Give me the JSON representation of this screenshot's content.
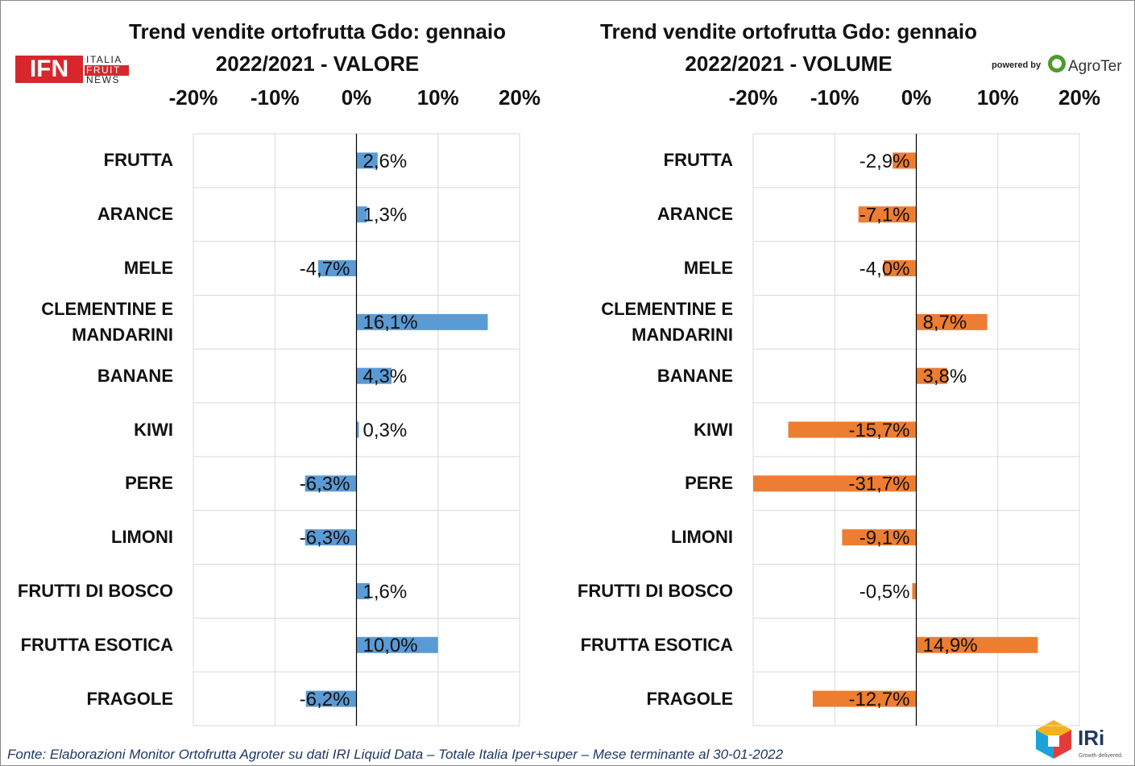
{
  "chart_data": [
    {
      "type": "bar",
      "orientation": "horizontal",
      "title": "Trend vendite ortofrutta Gdo: gennaio 2022/2021 - VALORE",
      "categories": [
        "FRUTTA",
        "ARANCE",
        "MELE",
        "CLEMENTINE E MANDARINI",
        "BANANE",
        "KIWI",
        "PERE",
        "LIMONI",
        "FRUTTI DI BOSCO",
        "FRUTTA ESOTICA",
        "FRAGOLE"
      ],
      "values": [
        2.6,
        1.3,
        -4.7,
        16.1,
        4.3,
        0.3,
        -6.3,
        -6.3,
        1.6,
        10.0,
        -6.2
      ],
      "value_labels": [
        "2,6%",
        "1,3%",
        "-4,7%",
        "16,1%",
        "4,3%",
        "0,3%",
        "-6,3%",
        "-6,3%",
        "1,6%",
        "10,0%",
        "-6,2%"
      ],
      "color": "#5b9bd5",
      "xlim": [
        -20,
        20
      ],
      "xticks": [
        {
          "value": -20,
          "label": "-20%"
        },
        {
          "value": -10,
          "label": "-10%"
        },
        {
          "value": 0,
          "label": "0%"
        },
        {
          "value": 10,
          "label": "10%"
        },
        {
          "value": 20,
          "label": "20%"
        }
      ],
      "grid": true
    },
    {
      "type": "bar",
      "orientation": "horizontal",
      "title": "Trend vendite ortofrutta Gdo: gennaio 2022/2021 - VOLUME",
      "categories": [
        "FRUTTA",
        "ARANCE",
        "MELE",
        "CLEMENTINE E MANDARINI",
        "BANANE",
        "KIWI",
        "PERE",
        "LIMONI",
        "FRUTTI DI BOSCO",
        "FRUTTA ESOTICA",
        "FRAGOLE"
      ],
      "values": [
        -2.9,
        -7.1,
        -4.0,
        8.7,
        3.8,
        -15.7,
        -31.7,
        -9.1,
        -0.5,
        14.9,
        -12.7
      ],
      "value_labels": [
        "-2,9%",
        "-7,1%",
        "-4,0%",
        "8,7%",
        "3,8%",
        "-15,7%",
        "-31,7%",
        "-9,1%",
        "-0,5%",
        "14,9%",
        "-12,7%"
      ],
      "color": "#ed7d31",
      "xlim": [
        -20,
        20
      ],
      "xticks": [
        {
          "value": -20,
          "label": "-20%"
        },
        {
          "value": -10,
          "label": "-10%"
        },
        {
          "value": 0,
          "label": "0%"
        },
        {
          "value": 10,
          "label": "10%"
        },
        {
          "value": 20,
          "label": "20%"
        }
      ],
      "grid": true
    }
  ],
  "logos": {
    "ifn": "IFN",
    "italia": "ITALIA",
    "fruit": "FRUIT",
    "news": "NEWS",
    "powered_by": "powered by",
    "agroter": "AgroTer",
    "iri": "IRi",
    "iri_tagline": "Growth delivered."
  },
  "source": "Fonte: Elaborazioni Monitor Ortofrutta Agroter su dati IRI Liquid Data – Totale Italia Iper+super – Mese terminante al 30-01-2022"
}
